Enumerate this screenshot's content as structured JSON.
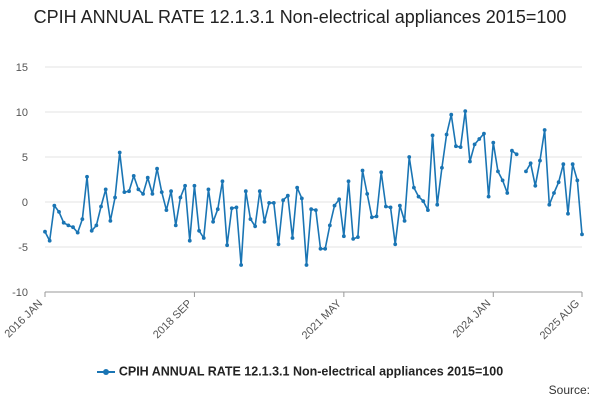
{
  "title": "CPIH ANNUAL RATE 12.1.3.1 Non-electrical appliances 2015=100",
  "source": "Source:",
  "chart_data": {
    "type": "line",
    "title": "CPIH ANNUAL RATE 12.1.3.1 Non-electrical appliances 2015=100",
    "xlabel": "",
    "ylabel": "",
    "ylim": [
      -10,
      15
    ],
    "yticks": [
      -10,
      -5,
      0,
      5,
      10,
      15
    ],
    "xticks": [
      "2016 JAN",
      "2018 SEP",
      "2021 MAY",
      "2024 JAN",
      "2025 AUG"
    ],
    "x_start": "2016 JAN",
    "x_end": "2025 AUG",
    "grid": true,
    "legend_position": "bottom",
    "series_color": "#1a75b4",
    "series": [
      {
        "name": "CPIH ANNUAL RATE 12.1.3.1 Non-electrical appliances 2015=100",
        "values": [
          -3.3,
          -4.3,
          -0.4,
          -1.1,
          -2.3,
          -2.6,
          -2.8,
          -3.4,
          -1.9,
          2.8,
          -3.2,
          -2.6,
          -0.5,
          1.4,
          -2.1,
          0.5,
          5.5,
          1.1,
          1.2,
          2.9,
          1.4,
          0.9,
          2.7,
          0.9,
          3.7,
          1.1,
          -0.9,
          1.2,
          -2.6,
          0.5,
          1.8,
          -4.3,
          1.8,
          -3.2,
          -4.0,
          1.4,
          -2.2,
          -0.8,
          2.3,
          -4.8,
          -0.7,
          -0.6,
          -7.0,
          1.2,
          -1.9,
          -2.7,
          1.2,
          -2.2,
          -0.1,
          -0.1,
          -4.7,
          0.2,
          0.7,
          -4.0,
          1.6,
          0.4,
          -7.0,
          -0.8,
          -0.9,
          -5.2,
          -5.2,
          -2.6,
          -0.4,
          0.3,
          -3.8,
          2.3,
          -4.1,
          -3.9,
          3.5,
          0.9,
          -1.7,
          -1.6,
          3.3,
          -0.5,
          -0.6,
          -4.7,
          -0.4,
          -2.1,
          5.0,
          1.6,
          0.6,
          0.1,
          -0.9,
          7.4,
          -0.3,
          3.8,
          7.5,
          9.7,
          6.2,
          6.1,
          10.1,
          4.5,
          6.4,
          7.0,
          7.6,
          0.6,
          6.6,
          3.4,
          2.4,
          1.0,
          5.7,
          5.3,
          null,
          3.4,
          4.3,
          1.8,
          4.6,
          8.0,
          -0.3,
          1.0,
          2.2,
          4.2,
          -1.3,
          4.2,
          2.4,
          -3.6
        ]
      }
    ]
  }
}
